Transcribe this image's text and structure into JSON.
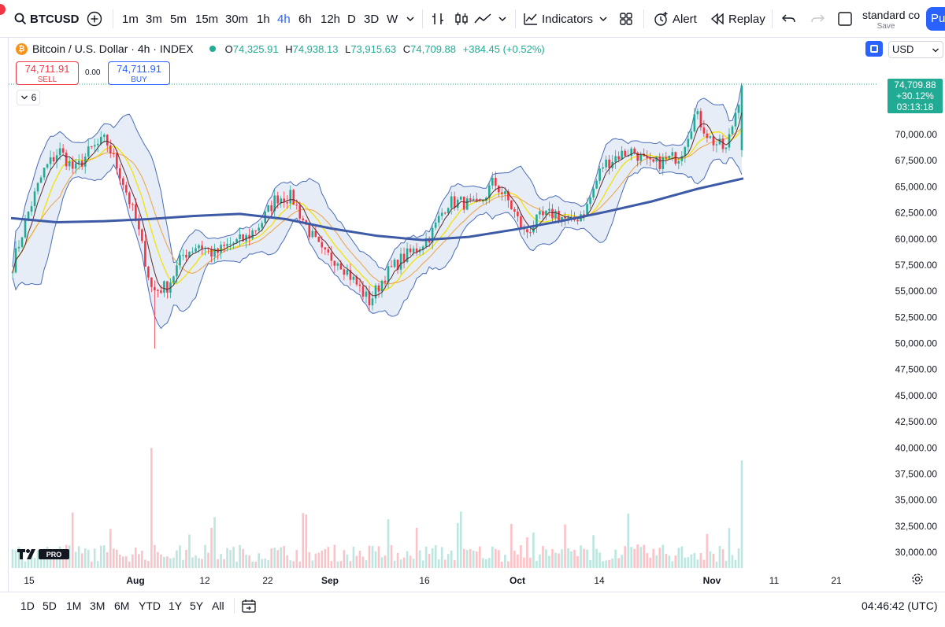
{
  "toolbar": {
    "symbol": "BTCUSD",
    "intervals": [
      "1m",
      "3m",
      "5m",
      "15m",
      "30m",
      "1h",
      "4h",
      "6h",
      "12h",
      "D",
      "3D",
      "W"
    ],
    "active_interval": "4h",
    "indicators_label": "Indicators",
    "alert_label": "Alert",
    "replay_label": "Replay",
    "layout_name": "standard co",
    "save_label": "Save",
    "publish_label": "Pu"
  },
  "legend": {
    "title": "Bitcoin / U.S. Dollar · 4h · INDEX",
    "open_key": "O",
    "open": "74,325.91",
    "high_key": "H",
    "high": "74,938.13",
    "low_key": "L",
    "low": "73,915.63",
    "close_key": "C",
    "close": "74,709.88",
    "change": "+384.45 (+0.52%)"
  },
  "trade": {
    "sell_price": "74,711.91",
    "sell_label": "SELL",
    "spread": "0.00",
    "buy_price": "74,711.91",
    "buy_label": "BUY"
  },
  "indicator_toggle": {
    "label": "6"
  },
  "currency": "USD",
  "last_price": {
    "price": "74,709.88",
    "change": "+30.12%",
    "countdown": "03:13:18"
  },
  "bottom": {
    "ranges": [
      "1D",
      "5D",
      "1M",
      "3M",
      "6M",
      "YTD",
      "1Y",
      "5Y",
      "All"
    ],
    "clock": "04:46:42 (UTC)"
  },
  "colors": {
    "up": "#22ab94",
    "down": "#f23645",
    "accent": "#2962ff",
    "ma_long": "#3c5aa6",
    "ma_black": "#5d2a2a",
    "ma_orange": "#f0a040",
    "ma_yellow": "#f5e100",
    "bb_fill": "#dbe6f4",
    "bb_line": "#4a6cb8"
  },
  "chart_data": {
    "type": "candlestick",
    "y_ticks": [
      "70,000.00",
      "67,500.00",
      "65,000.00",
      "62,500.00",
      "60,000.00",
      "57,500.00",
      "55,000.00",
      "52,500.00",
      "50,000.00",
      "47,500.00",
      "45,000.00",
      "42,500.00",
      "40,000.00",
      "37,500.00",
      "35,000.00",
      "32,500.00",
      "30,000.00"
    ],
    "x_ticks": [
      "15",
      "Aug",
      "12",
      "22",
      "Sep",
      "16",
      "Oct",
      "14",
      "Nov",
      "11",
      "21"
    ],
    "close_series": [
      {
        "label": "15",
        "value": 57500
      },
      {
        "value": 62500
      },
      {
        "value": 66500
      },
      {
        "value": 68500
      },
      {
        "value": 66500
      },
      {
        "value": 68500
      },
      {
        "value": 69500
      },
      {
        "value": 66000
      },
      {
        "label": "Aug",
        "value": 61500
      },
      {
        "value": 55000
      },
      {
        "value": 55500
      },
      {
        "value": 58500
      },
      {
        "label": "12",
        "value": 59500
      },
      {
        "value": 58500
      },
      {
        "value": 59500
      },
      {
        "value": 60000
      },
      {
        "label": "22",
        "value": 61500
      },
      {
        "value": 64000
      },
      {
        "value": 64000
      },
      {
        "value": 61000
      },
      {
        "label": "Sep",
        "value": 58500
      },
      {
        "value": 58000
      },
      {
        "value": 56000
      },
      {
        "value": 54000
      },
      {
        "value": 56500
      },
      {
        "value": 58000
      },
      {
        "label": "16",
        "value": 59000
      },
      {
        "value": 60500
      },
      {
        "value": 63500
      },
      {
        "value": 63500
      },
      {
        "value": 63000
      },
      {
        "value": 65500
      },
      {
        "label": "Oct",
        "value": 63500
      },
      {
        "value": 60500
      },
      {
        "value": 62000
      },
      {
        "value": 62500
      },
      {
        "value": 61500
      },
      {
        "label": "14",
        "value": 63000
      },
      {
        "value": 67000
      },
      {
        "value": 68000
      },
      {
        "value": 68500
      },
      {
        "value": 67000
      },
      {
        "value": 67500
      },
      {
        "value": 68000
      },
      {
        "label": "Nov",
        "value": 72000
      },
      {
        "value": 69500
      },
      {
        "value": 68500
      },
      {
        "value": 74710
      }
    ],
    "moving_average_long": [
      62000,
      61600,
      61700,
      61900,
      62200,
      62400,
      61900,
      61000,
      60300,
      59900,
      60200,
      60900,
      61700,
      62600,
      63600,
      64800,
      65800
    ],
    "volume_peaks": [
      {
        "x": "Aug",
        "value": 40500
      },
      {
        "x": "Nov",
        "value": 39300
      }
    ]
  }
}
